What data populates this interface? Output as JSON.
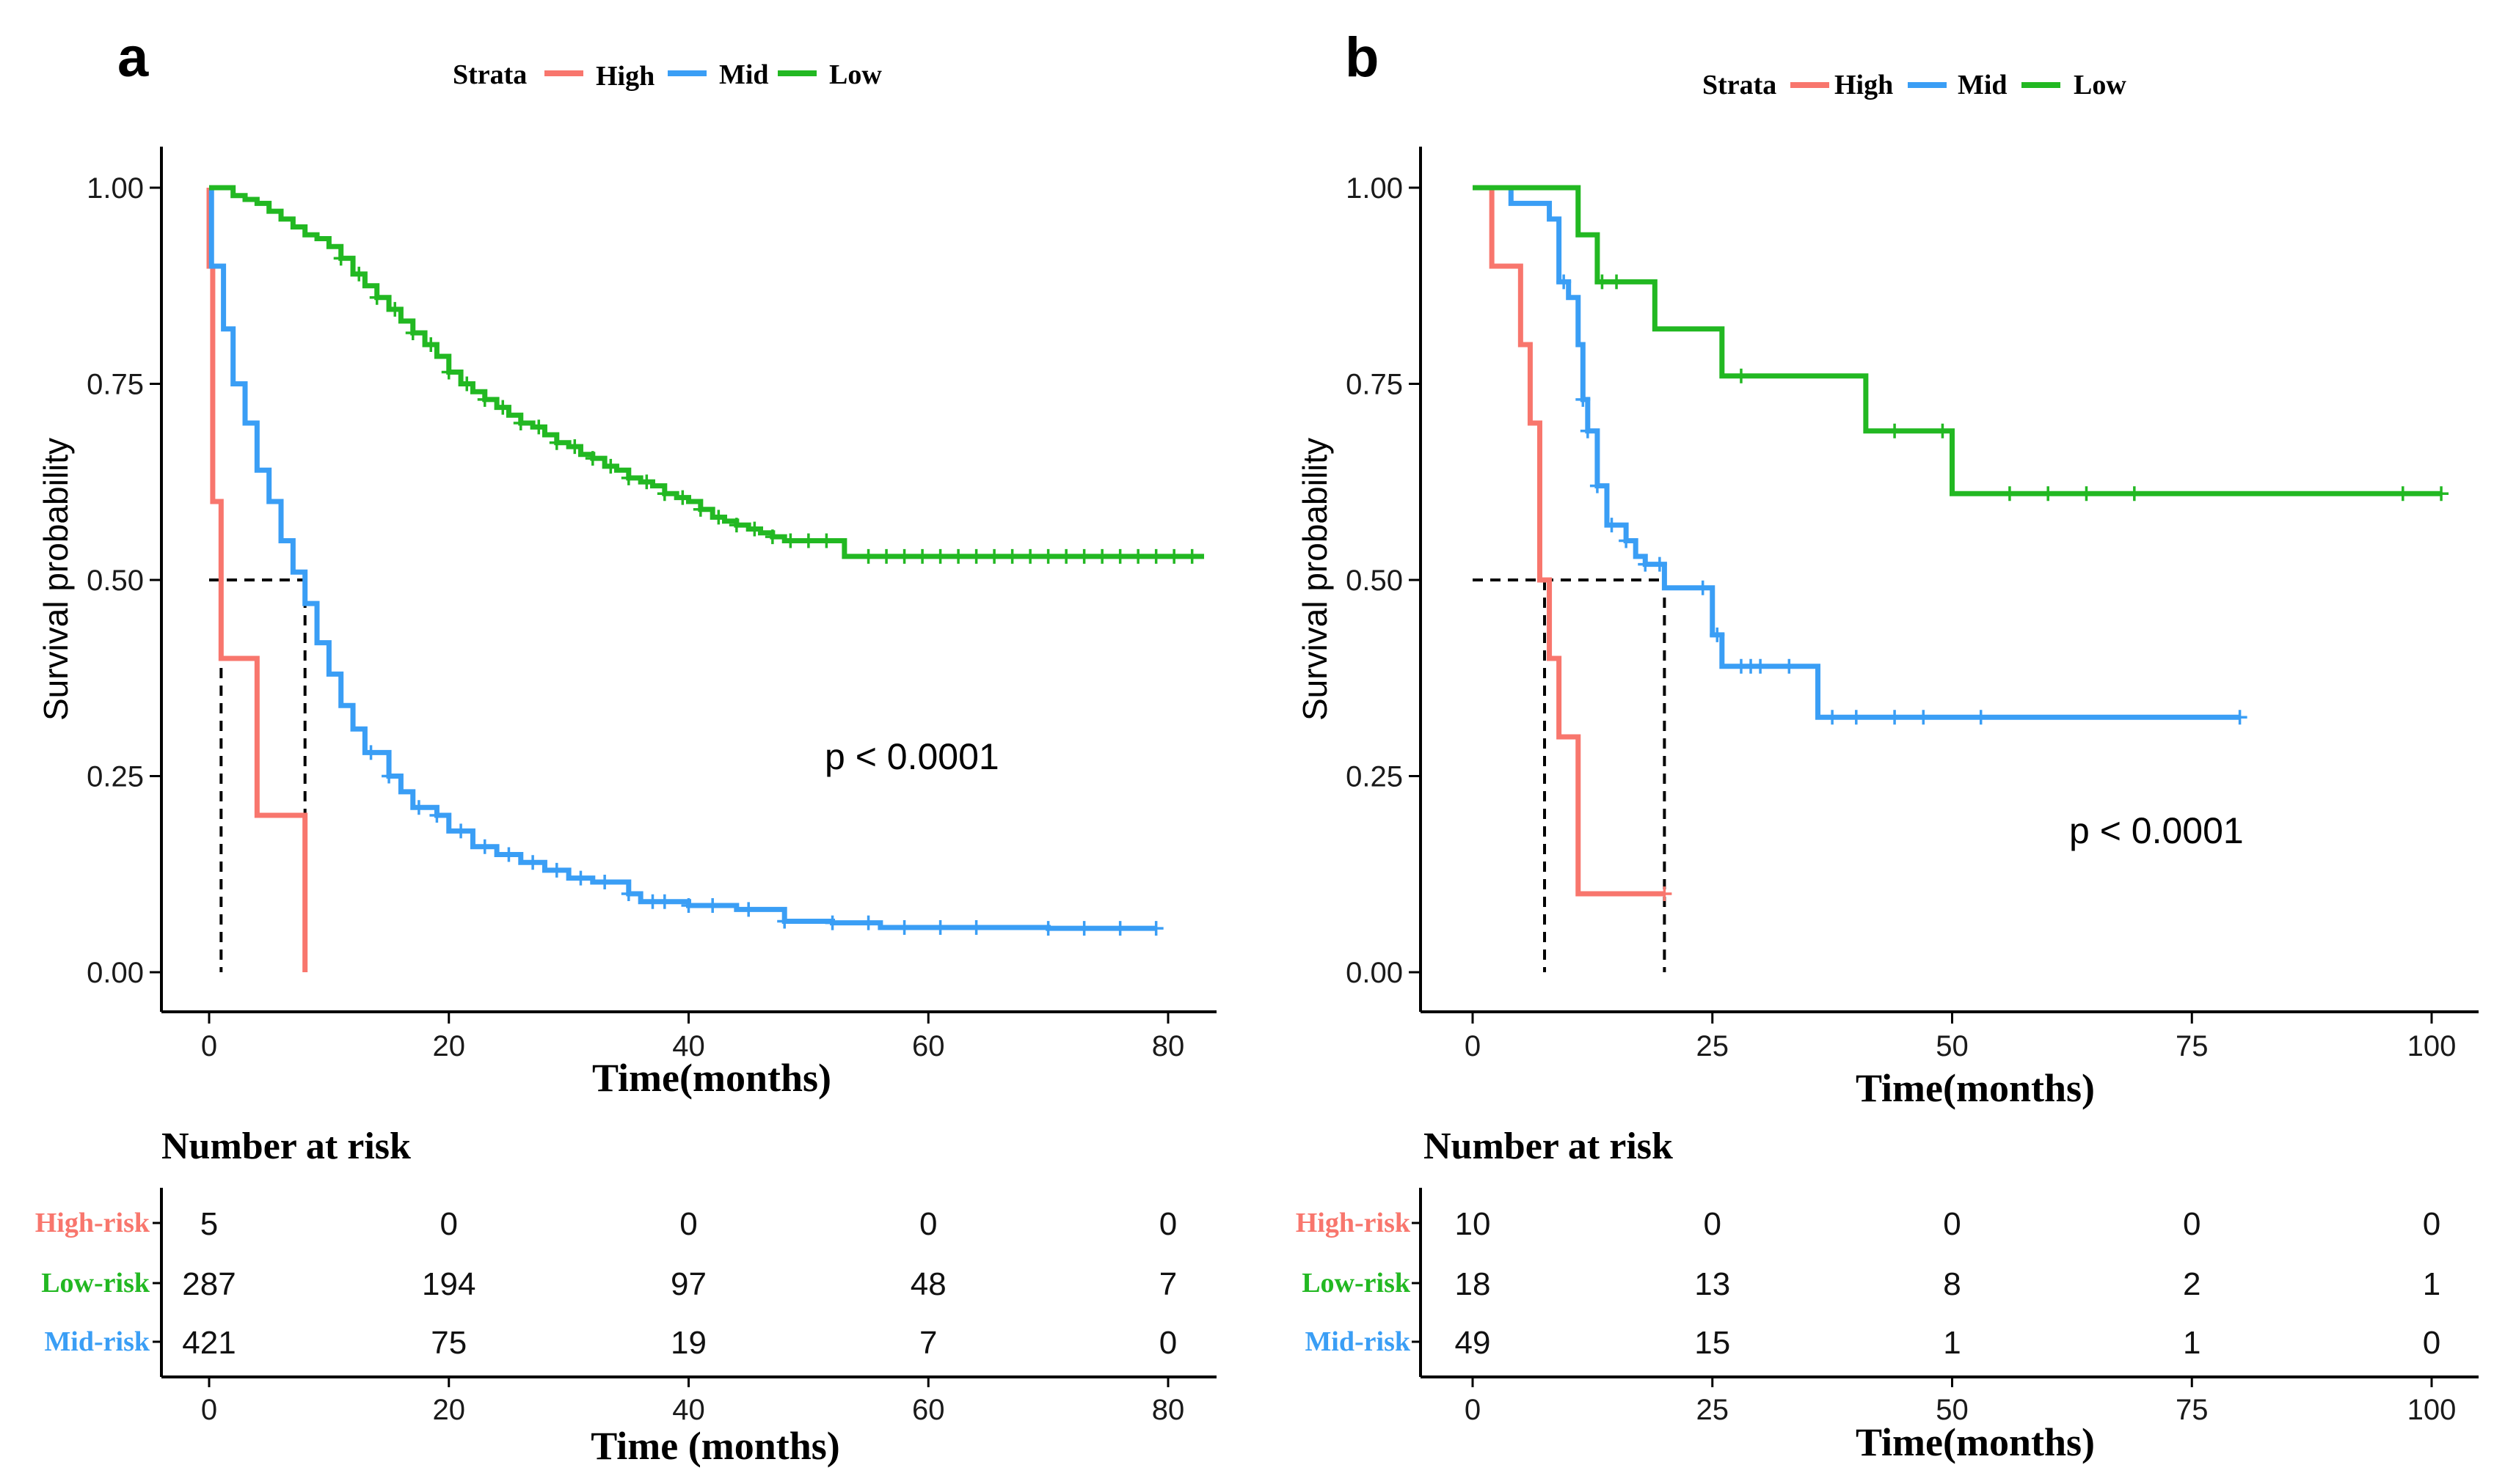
{
  "colors": {
    "high": "#F8766D",
    "mid": "#3A9EF5",
    "low": "#22B822",
    "axis": "#000000",
    "dash": "#000000"
  },
  "chart_data": [
    {
      "type": "line",
      "subtype": "kaplan-meier",
      "panel_label": "a",
      "legend": {
        "title": "Strata",
        "entries": [
          "High",
          "Mid",
          "Low"
        ],
        "placement": "top"
      },
      "ylabel": "Survival probability",
      "xlabel": "Time(months)",
      "ylim": [
        0,
        1
      ],
      "xlim": [
        0,
        80
      ],
      "y_ticks": [
        "0.00",
        "0.25",
        "0.50",
        "0.75",
        "1.00"
      ],
      "x_ticks": [
        "0",
        "20",
        "40",
        "60",
        "80"
      ],
      "pvalue": "p < 0.0001",
      "median_lines": [
        {
          "x": 1,
          "label": "High"
        },
        {
          "x": 8,
          "label": "Mid"
        }
      ],
      "series": [
        {
          "name": "High",
          "color_key": "high",
          "points": [
            [
              0,
              1.0
            ],
            [
              0,
              0.9
            ],
            [
              0.3,
              0.6
            ],
            [
              1,
              0.4
            ],
            [
              4,
              0.2
            ],
            [
              8,
              0.0
            ]
          ],
          "censors": []
        },
        {
          "name": "Mid",
          "color_key": "mid",
          "points": [
            [
              0,
              1.0
            ],
            [
              0.2,
              0.9
            ],
            [
              1.2,
              0.82
            ],
            [
              2,
              0.75
            ],
            [
              3,
              0.7
            ],
            [
              4,
              0.64
            ],
            [
              5,
              0.6
            ],
            [
              6,
              0.55
            ],
            [
              7,
              0.51
            ],
            [
              8,
              0.47
            ],
            [
              9,
              0.42
            ],
            [
              10,
              0.38
            ],
            [
              11,
              0.34
            ],
            [
              12,
              0.31
            ],
            [
              13,
              0.28
            ],
            [
              15,
              0.25
            ],
            [
              16,
              0.23
            ],
            [
              17,
              0.21
            ],
            [
              19,
              0.2
            ],
            [
              20,
              0.18
            ],
            [
              22,
              0.16
            ],
            [
              24,
              0.15
            ],
            [
              26,
              0.14
            ],
            [
              28,
              0.13
            ],
            [
              30,
              0.12
            ],
            [
              32,
              0.115
            ],
            [
              35,
              0.1
            ],
            [
              36,
              0.09
            ],
            [
              40,
              0.085
            ],
            [
              44,
              0.08
            ],
            [
              48,
              0.065
            ],
            [
              52,
              0.063
            ],
            [
              56,
              0.057
            ],
            [
              60,
              0.057
            ],
            [
              64,
              0.057
            ],
            [
              70,
              0.056
            ],
            [
              79,
              0.056
            ]
          ],
          "censors": [
            13.5,
            15,
            17.5,
            19,
            21,
            23,
            25,
            27,
            29,
            31,
            33,
            35,
            37,
            38,
            40,
            42,
            45,
            48,
            52,
            55,
            58,
            61,
            64,
            70,
            73,
            76,
            79
          ]
        },
        {
          "name": "Low",
          "color_key": "low",
          "points": [
            [
              0,
              1.0
            ],
            [
              2,
              0.99
            ],
            [
              3,
              0.985
            ],
            [
              4,
              0.98
            ],
            [
              5,
              0.97
            ],
            [
              6,
              0.96
            ],
            [
              7,
              0.95
            ],
            [
              8,
              0.94
            ],
            [
              9,
              0.935
            ],
            [
              10,
              0.925
            ],
            [
              11,
              0.91
            ],
            [
              12,
              0.89
            ],
            [
              13,
              0.875
            ],
            [
              14,
              0.86
            ],
            [
              15,
              0.845
            ],
            [
              16,
              0.83
            ],
            [
              17,
              0.815
            ],
            [
              18,
              0.8
            ],
            [
              19,
              0.785
            ],
            [
              20,
              0.765
            ],
            [
              21,
              0.75
            ],
            [
              22,
              0.74
            ],
            [
              23,
              0.73
            ],
            [
              24,
              0.72
            ],
            [
              25,
              0.71
            ],
            [
              26,
              0.7
            ],
            [
              27,
              0.695
            ],
            [
              28,
              0.685
            ],
            [
              29,
              0.675
            ],
            [
              30,
              0.67
            ],
            [
              31,
              0.66
            ],
            [
              32,
              0.655
            ],
            [
              33,
              0.645
            ],
            [
              34,
              0.64
            ],
            [
              35,
              0.63
            ],
            [
              36,
              0.625
            ],
            [
              37,
              0.62
            ],
            [
              38,
              0.61
            ],
            [
              39,
              0.605
            ],
            [
              40,
              0.6
            ],
            [
              41,
              0.59
            ],
            [
              42,
              0.58
            ],
            [
              43,
              0.575
            ],
            [
              44,
              0.57
            ],
            [
              45,
              0.565
            ],
            [
              46,
              0.56
            ],
            [
              47,
              0.555
            ],
            [
              48,
              0.55
            ],
            [
              50,
              0.55
            ],
            [
              53,
              0.53
            ],
            [
              83,
              0.53
            ]
          ],
          "censors": [
            11,
            12.5,
            14,
            15.5,
            17,
            18.5,
            20,
            21.5,
            23,
            24.5,
            26,
            27.5,
            29,
            30.5,
            32,
            33.5,
            35,
            36.5,
            38,
            39.5,
            41,
            42.5,
            44,
            45.5,
            47,
            48.5,
            50,
            51.5,
            55,
            56.5,
            58,
            59.5,
            61,
            62.5,
            64,
            65.5,
            67,
            68.5,
            70,
            71.5,
            73,
            74.5,
            76,
            77.5,
            79,
            80.5,
            82
          ]
        }
      ],
      "risk_table": {
        "title": "Number at risk",
        "xlabel": "Time (months)",
        "x_ticks": [
          "0",
          "20",
          "40",
          "60",
          "80"
        ],
        "rows": [
          {
            "label": "High-risk",
            "color_key": "high",
            "values": [
              "5",
              "0",
              "0",
              "0",
              "0"
            ]
          },
          {
            "label": "Low-risk",
            "color_key": "low",
            "values": [
              "287",
              "194",
              "97",
              "48",
              "7"
            ]
          },
          {
            "label": "Mid-risk",
            "color_key": "mid",
            "values": [
              "421",
              "75",
              "19",
              "7",
              "0"
            ]
          }
        ]
      }
    },
    {
      "type": "line",
      "subtype": "kaplan-meier",
      "panel_label": "b",
      "legend": {
        "title": "Strata",
        "entries": [
          "High",
          "Mid",
          "Low"
        ],
        "placement": "top"
      },
      "ylabel": "Survival probability",
      "xlabel": "Time(months)",
      "ylim": [
        0,
        1
      ],
      "xlim": [
        0,
        100
      ],
      "y_ticks": [
        "0.00",
        "0.25",
        "0.50",
        "0.75",
        "1.00"
      ],
      "x_ticks": [
        "0",
        "25",
        "50",
        "75",
        "100"
      ],
      "pvalue": "p < 0.0001",
      "median_lines": [
        {
          "x": 7.5,
          "label": "High"
        },
        {
          "x": 20,
          "label": "Mid"
        }
      ],
      "series": [
        {
          "name": "High",
          "color_key": "high",
          "points": [
            [
              0,
              1.0
            ],
            [
              2,
              0.9
            ],
            [
              5,
              0.8
            ],
            [
              6,
              0.7
            ],
            [
              7,
              0.5
            ],
            [
              8,
              0.4
            ],
            [
              9,
              0.3
            ],
            [
              11,
              0.1
            ],
            [
              20,
              0.1
            ]
          ],
          "censors": [
            20
          ]
        },
        {
          "name": "Mid",
          "color_key": "mid",
          "points": [
            [
              0,
              1.0
            ],
            [
              4,
              0.98
            ],
            [
              8,
              0.96
            ],
            [
              9,
              0.88
            ],
            [
              10,
              0.86
            ],
            [
              11,
              0.8
            ],
            [
              11.5,
              0.73
            ],
            [
              12,
              0.69
            ],
            [
              13,
              0.62
            ],
            [
              14,
              0.57
            ],
            [
              16,
              0.55
            ],
            [
              17,
              0.53
            ],
            [
              18,
              0.52
            ],
            [
              20,
              0.49
            ],
            [
              24,
              0.49
            ],
            [
              25,
              0.43
            ],
            [
              26,
              0.39
            ],
            [
              36,
              0.325
            ],
            [
              80,
              0.325
            ]
          ],
          "censors": [
            9.5,
            11.5,
            12,
            13,
            14.5,
            16,
            18,
            19.5,
            24,
            25.5,
            28,
            29,
            30,
            33,
            37.5,
            40,
            44,
            47,
            53,
            80
          ]
        },
        {
          "name": "Low",
          "color_key": "low",
          "points": [
            [
              0,
              1.0
            ],
            [
              11,
              0.94
            ],
            [
              13,
              0.88
            ],
            [
              19,
              0.82
            ],
            [
              26,
              0.76
            ],
            [
              41,
              0.69
            ],
            [
              50,
              0.61
            ],
            [
              101,
              0.61
            ]
          ],
          "censors": [
            13.5,
            15,
            28,
            44,
            49,
            56,
            60,
            64,
            69,
            97,
            101
          ]
        }
      ],
      "risk_table": {
        "title": "Number at risk",
        "xlabel": "Time(months)",
        "x_ticks": [
          "0",
          "25",
          "50",
          "75",
          "100"
        ],
        "rows": [
          {
            "label": "High-risk",
            "color_key": "high",
            "values": [
              "10",
              "0",
              "0",
              "0",
              "0"
            ]
          },
          {
            "label": "Low-risk",
            "color_key": "low",
            "values": [
              "18",
              "13",
              "8",
              "2",
              "1"
            ]
          },
          {
            "label": "Mid-risk",
            "color_key": "mid",
            "values": [
              "49",
              "15",
              "1",
              "1",
              "0"
            ]
          }
        ]
      }
    }
  ]
}
